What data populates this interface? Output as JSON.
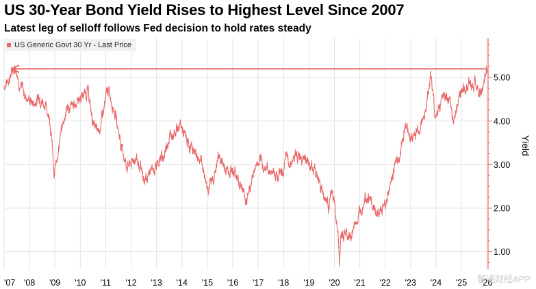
{
  "header": {
    "title": "US 30-Year Bond Yield Rises to Highest Level Since 2007",
    "subtitle": "Latest leg of selloff follows Fed decision to hold rates steady"
  },
  "watermark": "智通财经APP",
  "colors": {
    "series": "#e8696a",
    "grid": "#e3e3e3",
    "axis": "#e8696a"
  },
  "chart_data": {
    "type": "line",
    "title": "US 30-Year Bond Yield Rises to Highest Level Since 2007",
    "subtitle": "Latest leg of selloff follows Fed decision to hold rates steady",
    "ylabel": "Yield",
    "xlabel": "",
    "xlim": [
      2007.0,
      2026.05
    ],
    "ylim": [
      0.6,
      5.9
    ],
    "y_ticks": [
      1.0,
      2.0,
      3.0,
      4.0,
      5.0
    ],
    "y_tick_labels": [
      "1.00",
      "2.00",
      "3.00",
      "4.00",
      "5.00"
    ],
    "x_ticks": [
      2007,
      2008,
      2009,
      2010,
      2011,
      2012,
      2013,
      2014,
      2015,
      2016,
      2017,
      2018,
      2019,
      2020,
      2021,
      2022,
      2023,
      2024,
      2025,
      2026
    ],
    "x_tick_labels": [
      "'07",
      "'08",
      "'09",
      "'10",
      "'11",
      "'12",
      "'13",
      "'14",
      "'15",
      "'16",
      "'17",
      "'18",
      "'19",
      "'20",
      "'21",
      "'22",
      "'23",
      "'24",
      "'25",
      "'26"
    ],
    "grid": true,
    "legend_position": "top-left",
    "y_axis_side": "right",
    "annotation": {
      "type": "horizontal-arrow",
      "from_x": 2026.0,
      "to_x": 2007.3,
      "y": 5.2
    },
    "series": [
      {
        "name": "US Generic Govt 30 Yr - Last Price",
        "x": [
          2007.0,
          2007.2,
          2007.45,
          2007.6,
          2007.8,
          2008.0,
          2008.2,
          2008.4,
          2008.6,
          2008.8,
          2008.9,
          2008.97,
          2009.05,
          2009.2,
          2009.45,
          2009.7,
          2009.9,
          2010.1,
          2010.3,
          2010.45,
          2010.65,
          2010.8,
          2011.0,
          2011.1,
          2011.3,
          2011.6,
          2011.8,
          2012.0,
          2012.2,
          2012.5,
          2012.7,
          2012.9,
          2013.1,
          2013.3,
          2013.45,
          2013.7,
          2013.95,
          2014.2,
          2014.5,
          2014.75,
          2015.0,
          2015.2,
          2015.45,
          2015.7,
          2016.0,
          2016.3,
          2016.5,
          2016.7,
          2016.9,
          2017.1,
          2017.4,
          2017.7,
          2017.95,
          2018.1,
          2018.4,
          2018.8,
          2019.0,
          2019.3,
          2019.6,
          2019.75,
          2019.9,
          2020.0,
          2020.15,
          2020.2,
          2020.25,
          2020.4,
          2020.6,
          2020.8,
          2021.0,
          2021.2,
          2021.4,
          2021.6,
          2021.8,
          2022.0,
          2022.2,
          2022.4,
          2022.6,
          2022.8,
          2023.0,
          2023.2,
          2023.4,
          2023.6,
          2023.8,
          2023.95,
          2024.1,
          2024.3,
          2024.5,
          2024.7,
          2024.9,
          2025.1,
          2025.3,
          2025.5,
          2025.7,
          2025.85,
          2026.0
        ],
        "y": [
          4.8,
          5.0,
          5.3,
          4.9,
          4.6,
          4.5,
          4.4,
          4.6,
          4.4,
          4.1,
          3.4,
          2.6,
          3.1,
          3.6,
          4.3,
          4.3,
          4.5,
          4.6,
          4.7,
          4.1,
          3.7,
          3.9,
          4.5,
          4.7,
          4.4,
          3.5,
          3.0,
          3.0,
          3.2,
          2.6,
          2.8,
          2.9,
          3.1,
          3.2,
          3.6,
          3.8,
          3.9,
          3.5,
          3.3,
          3.1,
          2.5,
          2.6,
          3.2,
          2.9,
          2.9,
          2.6,
          2.2,
          2.5,
          3.0,
          3.0,
          2.9,
          2.8,
          2.8,
          3.1,
          3.1,
          3.3,
          3.0,
          2.8,
          2.3,
          2.1,
          2.3,
          2.1,
          1.3,
          0.7,
          1.3,
          1.4,
          1.3,
          1.6,
          1.9,
          2.4,
          2.2,
          1.9,
          1.9,
          2.1,
          2.5,
          3.1,
          3.2,
          4.0,
          3.6,
          3.7,
          3.9,
          4.3,
          5.1,
          4.1,
          4.3,
          4.6,
          4.4,
          4.0,
          4.6,
          4.7,
          4.9,
          4.9,
          4.7,
          4.7,
          5.1
        ]
      }
    ]
  }
}
